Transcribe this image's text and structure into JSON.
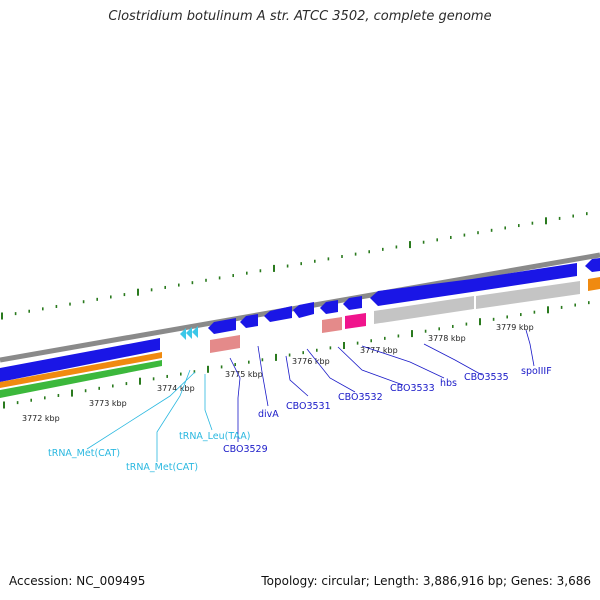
{
  "title": "Clostridium botulinum A str. ATCC 3502, complete genome",
  "footer": {
    "accession": "Accession: NC_009495",
    "topology": "Topology: circular; Length: 3,886,916 bp; Genes: 3,686"
  },
  "colors": {
    "backbone": "#8a8a8a",
    "cds": "#1a16e6",
    "trna": "#3cc7e8",
    "pink": "#e48a8a",
    "magenta": "#f0148c",
    "gray_feature": "#c4c4c4",
    "orange": "#f08a10",
    "green": "#3cb83c",
    "tick": "#2a7a1e",
    "label_dark": "#1a1ac8",
    "label_light": "#2ab8e0"
  },
  "kbp_labels": [
    "3772 kbp",
    "3773 kbp",
    "3774 kbp",
    "3775 kbp",
    "3776 kbp",
    "3777 kbp",
    "3778 kbp",
    "3779 kbp"
  ],
  "gene_labels": [
    {
      "text": "tRNA_Met(CAT)",
      "kind": "trna"
    },
    {
      "text": "tRNA_Met(CAT)",
      "kind": "trna"
    },
    {
      "text": "tRNA_Leu(TAA)",
      "kind": "trna"
    },
    {
      "text": "CBO3529",
      "kind": "cds"
    },
    {
      "text": "divA",
      "kind": "cds"
    },
    {
      "text": "CBO3531",
      "kind": "cds"
    },
    {
      "text": "CBO3532",
      "kind": "cds"
    },
    {
      "text": "CBO3533",
      "kind": "cds"
    },
    {
      "text": "hbs",
      "kind": "cds"
    },
    {
      "text": "CBO3535",
      "kind": "cds"
    },
    {
      "text": "spoIIIF",
      "kind": "cds"
    }
  ]
}
